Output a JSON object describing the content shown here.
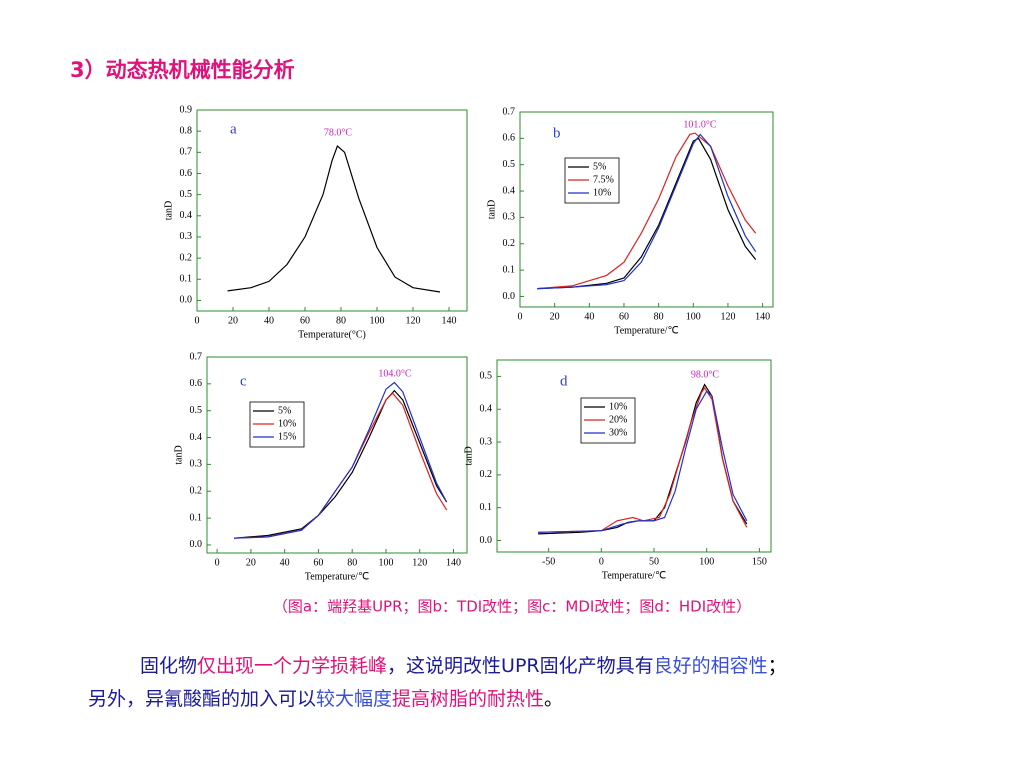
{
  "slide": {
    "title": "3）动态热机械性能分析",
    "caption": "（图a：端羟基UPR；图b：TDI改性；图c：MDI改性；图d：HDI改性）",
    "paragraph": [
      [
        {
          "text": "固化物",
          "color": "#1a1a9c"
        },
        {
          "text": "仅出现一个力学损耗峰",
          "color": "#e0127a"
        },
        {
          "text": "，这说明改性UPR固化产物具有",
          "color": "#1a1a9c"
        },
        {
          "text": "良好的相容性",
          "color": "#3a4fd8"
        },
        {
          "text": "；",
          "color": "#000000"
        }
      ],
      [
        {
          "text": "另外，异氰酸酯的加入可以",
          "color": "#1a1a9c"
        },
        {
          "text": "较大幅度",
          "color": "#3a4fd8"
        },
        {
          "text": "提高树脂的耐热性",
          "color": "#e0127a"
        },
        {
          "text": "。",
          "color": "#000000"
        }
      ]
    ]
  },
  "chart_data": [
    {
      "type": "line",
      "panel": "a",
      "annotation": "78.0°C",
      "x_label": "Temperature(°C)",
      "y_label": "tanD",
      "xlim": [
        0,
        150
      ],
      "ylim": [
        -0.05,
        0.9
      ],
      "xticks": [
        0,
        20,
        40,
        60,
        80,
        100,
        120,
        140
      ],
      "yticks": [
        {
          "value": 0,
          "label": "0.0"
        },
        0.1,
        0.2,
        0.3,
        0.4,
        0.5,
        0.6,
        0.7,
        0.8,
        0.9
      ],
      "series": [
        {
          "color": "#000000",
          "x": [
            17,
            30,
            40,
            50,
            60,
            70,
            75,
            78,
            82,
            90,
            100,
            110,
            120,
            135
          ],
          "values": [
            0.045,
            0.06,
            0.09,
            0.17,
            0.3,
            0.5,
            0.66,
            0.73,
            0.7,
            0.48,
            0.25,
            0.11,
            0.06,
            0.04
          ]
        }
      ]
    },
    {
      "type": "line",
      "panel": "b",
      "annotation": "101.0°C",
      "x_label": "Temperature/℃",
      "y_label": "tanD",
      "xlim": [
        0,
        146
      ],
      "ylim": [
        -0.04,
        0.7
      ],
      "xticks": [
        0,
        20,
        40,
        60,
        80,
        100,
        120,
        140
      ],
      "yticks": [
        {
          "value": 0,
          "label": "0.0"
        },
        0.1,
        0.2,
        0.3,
        0.4,
        0.5,
        0.6,
        0.7
      ],
      "series": [
        {
          "name": "5%",
          "color": "#000000",
          "x": [
            10,
            30,
            50,
            60,
            70,
            80,
            90,
            100,
            103,
            110,
            120,
            130,
            136
          ],
          "values": [
            0.03,
            0.035,
            0.05,
            0.07,
            0.15,
            0.27,
            0.43,
            0.59,
            0.6,
            0.52,
            0.33,
            0.19,
            0.14
          ]
        },
        {
          "name": "7.5%",
          "color": "#e02020",
          "x": [
            10,
            30,
            50,
            60,
            70,
            80,
            90,
            98,
            101,
            110,
            120,
            130,
            136
          ],
          "values": [
            0.03,
            0.04,
            0.08,
            0.13,
            0.24,
            0.37,
            0.53,
            0.615,
            0.62,
            0.57,
            0.42,
            0.29,
            0.24
          ]
        },
        {
          "name": "10%",
          "color": "#2030d0",
          "x": [
            10,
            30,
            50,
            60,
            70,
            80,
            90,
            100,
            104,
            110,
            120,
            130,
            136
          ],
          "values": [
            0.03,
            0.035,
            0.045,
            0.06,
            0.13,
            0.26,
            0.42,
            0.58,
            0.615,
            0.57,
            0.38,
            0.23,
            0.17
          ]
        }
      ]
    },
    {
      "type": "line",
      "panel": "c",
      "annotation": "104.0°C",
      "x_label": "Temperature/℃",
      "y_label": "tanD",
      "xlim": [
        -6,
        148
      ],
      "ylim": [
        -0.03,
        0.7
      ],
      "xticks": [
        0,
        20,
        40,
        60,
        80,
        100,
        120,
        140
      ],
      "yticks": [
        {
          "value": 0,
          "label": "0.0"
        },
        0.1,
        0.2,
        0.3,
        0.4,
        0.5,
        0.6,
        0.7
      ],
      "series": [
        {
          "name": "5%",
          "color": "#000000",
          "x": [
            10,
            30,
            50,
            60,
            70,
            80,
            90,
            100,
            105,
            110,
            120,
            130,
            136
          ],
          "values": [
            0.025,
            0.035,
            0.06,
            0.11,
            0.18,
            0.27,
            0.4,
            0.54,
            0.575,
            0.54,
            0.38,
            0.22,
            0.16
          ]
        },
        {
          "name": "10%",
          "color": "#e02020",
          "x": [
            10,
            30,
            50,
            60,
            70,
            80,
            90,
            100,
            104,
            110,
            120,
            130,
            136
          ],
          "values": [
            0.025,
            0.03,
            0.055,
            0.11,
            0.2,
            0.29,
            0.42,
            0.54,
            0.565,
            0.52,
            0.35,
            0.19,
            0.13
          ]
        },
        {
          "name": "15%",
          "color": "#2030d0",
          "x": [
            10,
            30,
            50,
            60,
            70,
            80,
            90,
            100,
            105,
            110,
            120,
            130,
            136
          ],
          "values": [
            0.025,
            0.03,
            0.055,
            0.11,
            0.2,
            0.29,
            0.43,
            0.58,
            0.605,
            0.57,
            0.4,
            0.23,
            0.16
          ]
        }
      ]
    },
    {
      "type": "line",
      "panel": "d",
      "annotation": "98.0°C",
      "x_label": "Temperature/℃",
      "y_label": "tanD",
      "xlim": [
        -99,
        161
      ],
      "ylim": [
        -0.035,
        0.55
      ],
      "xticks": [
        -50,
        0,
        50,
        100,
        150
      ],
      "yticks": [
        {
          "value": 0,
          "label": "0.0"
        },
        0.1,
        0.2,
        0.3,
        0.4,
        0.5
      ],
      "series": [
        {
          "name": "10%",
          "color": "#000000",
          "x": [
            -60,
            -20,
            0,
            15,
            25,
            35,
            50,
            60,
            70,
            80,
            90,
            98,
            105,
            115,
            125,
            138
          ],
          "values": [
            0.02,
            0.025,
            0.03,
            0.04,
            0.055,
            0.06,
            0.06,
            0.1,
            0.2,
            0.3,
            0.42,
            0.475,
            0.44,
            0.25,
            0.12,
            0.05
          ]
        },
        {
          "name": "20%",
          "color": "#e02020",
          "x": [
            -60,
            0,
            15,
            30,
            40,
            55,
            65,
            75,
            85,
            95,
            98,
            105,
            115,
            125,
            138
          ],
          "values": [
            0.025,
            0.03,
            0.06,
            0.07,
            0.06,
            0.07,
            0.14,
            0.25,
            0.36,
            0.45,
            0.465,
            0.43,
            0.25,
            0.12,
            0.04
          ]
        },
        {
          "name": "30%",
          "color": "#2030d0",
          "x": [
            -60,
            0,
            20,
            35,
            50,
            60,
            70,
            80,
            90,
            100,
            105,
            115,
            125,
            138
          ],
          "values": [
            0.025,
            0.03,
            0.05,
            0.06,
            0.06,
            0.07,
            0.15,
            0.28,
            0.4,
            0.455,
            0.44,
            0.28,
            0.14,
            0.06
          ]
        }
      ]
    }
  ]
}
